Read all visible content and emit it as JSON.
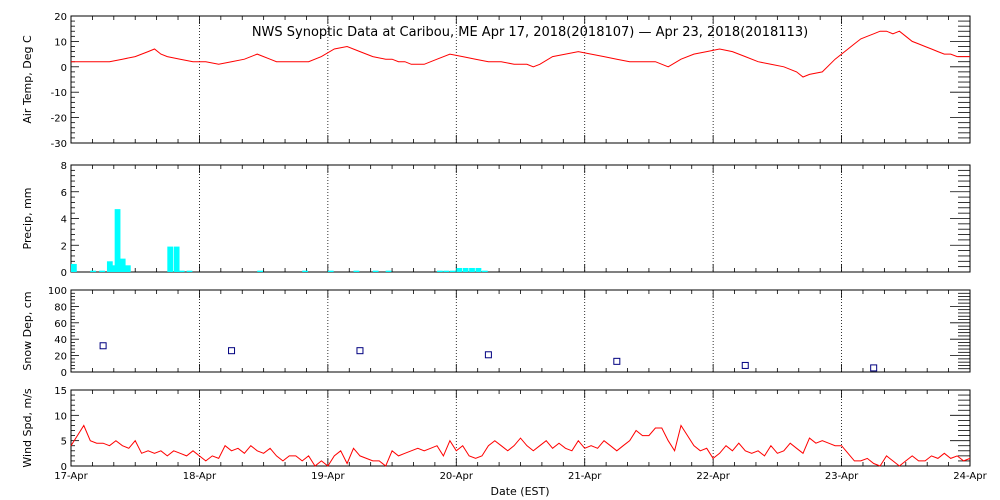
{
  "chart_data": {
    "title": "NWS Synoptic Data at Caribou, ME   Apr 17, 2018(2018107) — Apr 23, 2018(2018113)",
    "xlabel": "Date (EST)",
    "x_range_days": [
      0,
      7
    ],
    "date_ticks": [
      "17-Apr",
      "18-Apr",
      "19-Apr",
      "20-Apr",
      "21-Apr",
      "22-Apr",
      "23-Apr",
      "24-Apr"
    ],
    "colors": {
      "temp": "#ff0000",
      "precip": "#00ffff",
      "snow": "#000080",
      "wind": "#ff0000"
    },
    "panels": [
      {
        "name": "air-temp",
        "type": "line",
        "ylabel": "Air Temp, Deg C",
        "ylim": [
          -30,
          20
        ],
        "yticks": [
          20,
          10,
          0,
          -10,
          -20,
          -30
        ],
        "x": [
          0,
          0.15,
          0.3,
          0.4,
          0.5,
          0.6,
          0.65,
          0.7,
          0.75,
          0.85,
          0.95,
          1.05,
          1.15,
          1.25,
          1.35,
          1.45,
          1.55,
          1.6,
          1.65,
          1.75,
          1.85,
          1.95,
          2.05,
          2.15,
          2.25,
          2.35,
          2.45,
          2.5,
          2.55,
          2.6,
          2.65,
          2.75,
          2.85,
          2.95,
          3.05,
          3.15,
          3.25,
          3.35,
          3.45,
          3.55,
          3.6,
          3.65,
          3.75,
          3.85,
          3.95,
          4.05,
          4.15,
          4.25,
          4.35,
          4.45,
          4.5,
          4.55,
          4.65,
          4.75,
          4.85,
          4.95,
          5.05,
          5.15,
          5.25,
          5.35,
          5.45,
          5.55,
          5.65,
          5.7,
          5.75,
          5.85,
          5.95,
          6.05,
          6.1,
          6.15,
          6.2,
          6.25,
          6.3,
          6.35,
          6.4,
          6.45,
          6.5,
          6.55,
          6.6,
          6.65,
          6.7,
          6.75,
          6.8,
          6.85,
          6.9,
          6.95,
          7
        ],
        "values": [
          2,
          2,
          2,
          3,
          4,
          6,
          7,
          5,
          4,
          3,
          2,
          2,
          1,
          2,
          3,
          5,
          3,
          2,
          2,
          2,
          2,
          4,
          7,
          8,
          6,
          4,
          3,
          3,
          2,
          2,
          1,
          1,
          3,
          5,
          4,
          3,
          2,
          2,
          1,
          1,
          0,
          1,
          4,
          5,
          6,
          5,
          4,
          3,
          2,
          2,
          2,
          2,
          0,
          3,
          5,
          6,
          7,
          6,
          4,
          2,
          1,
          0,
          -2,
          -4,
          -3,
          -2,
          3,
          7,
          9,
          11,
          12,
          13,
          14,
          14,
          13,
          14,
          12,
          10,
          9,
          8,
          7,
          6,
          5,
          5,
          4,
          4,
          4
        ]
      },
      {
        "name": "precip",
        "type": "bar",
        "ylabel": "Precip, mm",
        "ylim": [
          0,
          8
        ],
        "yticks": [
          8,
          6,
          4,
          2,
          0
        ],
        "x": [
          0,
          0.15,
          0.22,
          0.28,
          0.3,
          0.34,
          0.38,
          0.42,
          0.75,
          0.8,
          0.84,
          0.9,
          1.45,
          1.8,
          2.0,
          2.2,
          2.35,
          2.45,
          2.85,
          2.9,
          2.95,
          3.0,
          3.05,
          3.1,
          3.15,
          3.2
        ],
        "values": [
          0.6,
          0.1,
          0.1,
          0.8,
          0.5,
          4.7,
          1.0,
          0.5,
          1.9,
          1.9,
          0.1,
          0.1,
          0.1,
          0.1,
          0.1,
          0.1,
          0.1,
          0.1,
          0.1,
          0.1,
          0.1,
          0.3,
          0.3,
          0.3,
          0.3,
          0.1
        ],
        "bar_width_days": 0.045
      },
      {
        "name": "snow-depth",
        "type": "scatter",
        "ylabel": "Snow Dep, cm",
        "ylim": [
          0,
          100
        ],
        "yticks": [
          100,
          80,
          60,
          40,
          20,
          0
        ],
        "x": [
          0.25,
          1.25,
          2.25,
          3.25,
          4.25,
          5.25,
          6.25
        ],
        "values": [
          32,
          26,
          26,
          21,
          13,
          8,
          5
        ]
      },
      {
        "name": "wind-speed",
        "type": "line",
        "ylabel": "Wind Spd, m/s",
        "ylim": [
          0,
          15
        ],
        "yticks": [
          15,
          10,
          5,
          0
        ],
        "x": [
          0,
          0.05,
          0.1,
          0.15,
          0.2,
          0.25,
          0.3,
          0.35,
          0.4,
          0.45,
          0.5,
          0.55,
          0.6,
          0.65,
          0.7,
          0.75,
          0.8,
          0.85,
          0.9,
          0.95,
          1.0,
          1.05,
          1.1,
          1.15,
          1.2,
          1.25,
          1.3,
          1.35,
          1.4,
          1.45,
          1.5,
          1.55,
          1.6,
          1.65,
          1.7,
          1.75,
          1.8,
          1.85,
          1.9,
          1.95,
          2.0,
          2.05,
          2.1,
          2.15,
          2.2,
          2.25,
          2.3,
          2.35,
          2.4,
          2.45,
          2.5,
          2.55,
          2.6,
          2.65,
          2.7,
          2.75,
          2.8,
          2.85,
          2.9,
          2.95,
          3.0,
          3.05,
          3.1,
          3.15,
          3.2,
          3.25,
          3.3,
          3.35,
          3.4,
          3.45,
          3.5,
          3.55,
          3.6,
          3.65,
          3.7,
          3.75,
          3.8,
          3.85,
          3.9,
          3.95,
          4.0,
          4.05,
          4.1,
          4.15,
          4.2,
          4.25,
          4.3,
          4.35,
          4.4,
          4.45,
          4.5,
          4.55,
          4.6,
          4.65,
          4.7,
          4.75,
          4.8,
          4.85,
          4.9,
          4.95,
          5.0,
          5.05,
          5.1,
          5.15,
          5.2,
          5.25,
          5.3,
          5.35,
          5.4,
          5.45,
          5.5,
          5.55,
          5.6,
          5.65,
          5.7,
          5.75,
          5.8,
          5.85,
          5.9,
          5.95,
          6.0,
          6.05,
          6.1,
          6.15,
          6.2,
          6.25,
          6.3,
          6.35,
          6.4,
          6.45,
          6.5,
          6.55,
          6.6,
          6.65,
          6.7,
          6.75,
          6.8,
          6.85,
          6.9,
          6.95,
          7.0
        ],
        "values": [
          4,
          6,
          8,
          5,
          4.5,
          4.5,
          4,
          5,
          4,
          3.5,
          5,
          2.5,
          3,
          2.5,
          3,
          2,
          3,
          2.5,
          2,
          3,
          2,
          1,
          2,
          1.5,
          4,
          3,
          3.5,
          2.5,
          4,
          3,
          2.5,
          3.5,
          2,
          1,
          2,
          2,
          1,
          2,
          0,
          1,
          0,
          2,
          3,
          0.5,
          3.5,
          2,
          1.5,
          1,
          1,
          0,
          3,
          2,
          2.5,
          3,
          3.5,
          3,
          3.5,
          4,
          2,
          5,
          3,
          4,
          2,
          1.5,
          2,
          4,
          5,
          4,
          3,
          4,
          5.5,
          4,
          3,
          4,
          5,
          3.5,
          4.5,
          3.5,
          3,
          5,
          3.5,
          4,
          3.5,
          5,
          4,
          3,
          4,
          5,
          7,
          6,
          6,
          7.5,
          7.5,
          5,
          3,
          8,
          6,
          4,
          3,
          3.5,
          1.5,
          2.5,
          4,
          3,
          4.5,
          3,
          2.5,
          3,
          2,
          4,
          2.5,
          3,
          4.5,
          3.5,
          2.5,
          5.5,
          4.5,
          5,
          4.5,
          4,
          4,
          2.5,
          1,
          1,
          1.5,
          0.5,
          0,
          2,
          1,
          0,
          1,
          2,
          1,
          1,
          2,
          1.5,
          2.5,
          1.5,
          2,
          1,
          1.5
        ]
      }
    ]
  }
}
